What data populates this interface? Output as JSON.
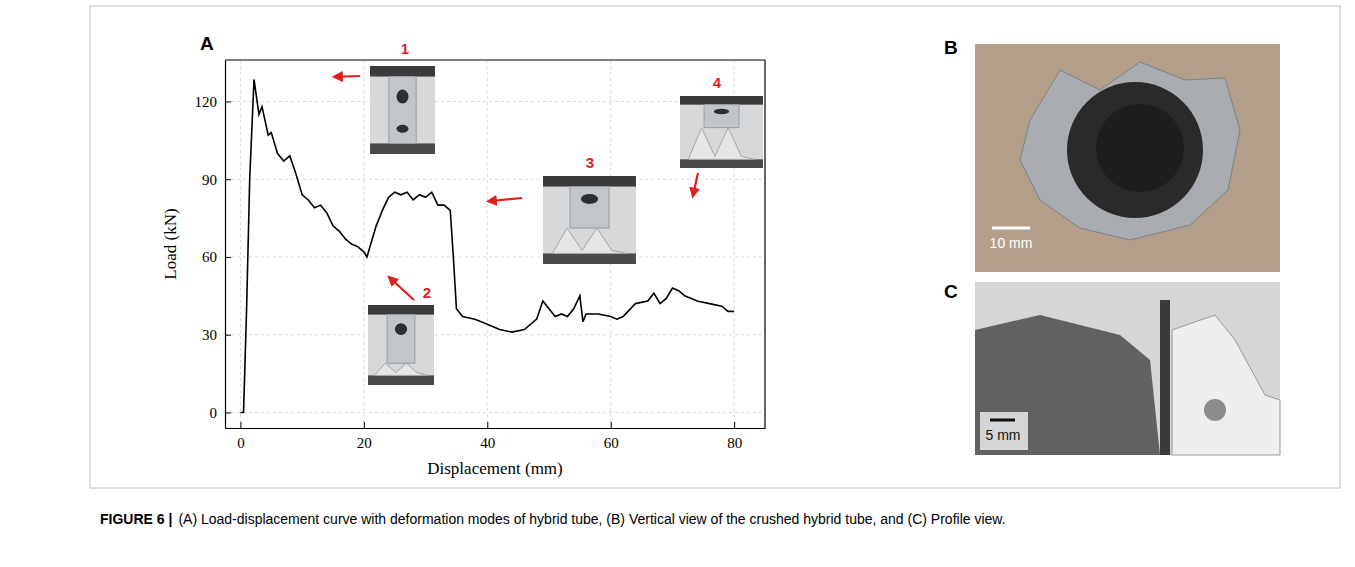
{
  "chart_data": {
    "type": "line",
    "x_label": "Displacement (mm)",
    "y_label": "Load (kN)",
    "x": [
      0,
      0.5,
      1,
      1.5,
      2.2,
      3,
      3.5,
      4.5,
      5,
      6,
      7,
      8,
      9,
      10,
      11,
      12,
      13,
      14,
      15,
      16,
      17,
      18,
      19,
      20,
      20.5,
      21,
      22,
      23,
      24,
      25,
      26,
      27,
      28,
      29,
      30,
      31,
      32,
      33,
      34,
      34.5,
      35,
      36,
      38,
      40,
      42,
      44,
      46,
      48,
      49,
      50,
      51,
      52,
      53,
      54,
      55,
      55.5,
      56,
      58,
      60,
      61,
      62,
      64,
      66,
      67,
      68,
      69,
      70,
      71,
      72,
      74,
      76,
      78,
      79,
      80
    ],
    "values": [
      0,
      0,
      40,
      90,
      128.5,
      115,
      118,
      107,
      108,
      100,
      97,
      99,
      92,
      84,
      82,
      79,
      80,
      77,
      72,
      70,
      67,
      65,
      64,
      62,
      60,
      64,
      72,
      78,
      83,
      85,
      84,
      85,
      82,
      84,
      83,
      85,
      80,
      80,
      78,
      60,
      40,
      37,
      36,
      34,
      32,
      31,
      32,
      36,
      43,
      40,
      37,
      38,
      37,
      40,
      45,
      35,
      38,
      38,
      37,
      36,
      37,
      42,
      43,
      46,
      42,
      44,
      48,
      47,
      45,
      43,
      42,
      41,
      39,
      39
    ],
    "color": "#000000",
    "xlim": [
      -2.5,
      85
    ],
    "xticks": [
      0,
      20,
      40,
      60,
      80
    ],
    "ylim": [
      -6,
      136
    ],
    "yticks": [
      0,
      30,
      60,
      90,
      120
    ],
    "grid": true,
    "annotations": [
      {
        "text": "1",
        "x": 2.2,
        "y": 128.5
      },
      {
        "text": "2",
        "x": 20.5,
        "y": 60
      },
      {
        "text": "3",
        "x": 33.5,
        "y": 80
      },
      {
        "text": "4",
        "x": 70,
        "y": 48
      }
    ]
  },
  "figure": {
    "panels": [
      {
        "label": "A"
      },
      {
        "label": "B",
        "scale_bar": "10 mm"
      },
      {
        "label": "C",
        "scale_bar": "5 mm"
      }
    ],
    "caption": {
      "label": "FIGURE 6 |",
      "text": "(A) Load-displacement curve with deformation modes of hybrid tube, (B) Vertical view of the crushed hybrid tube, and (C) Profile view."
    }
  }
}
